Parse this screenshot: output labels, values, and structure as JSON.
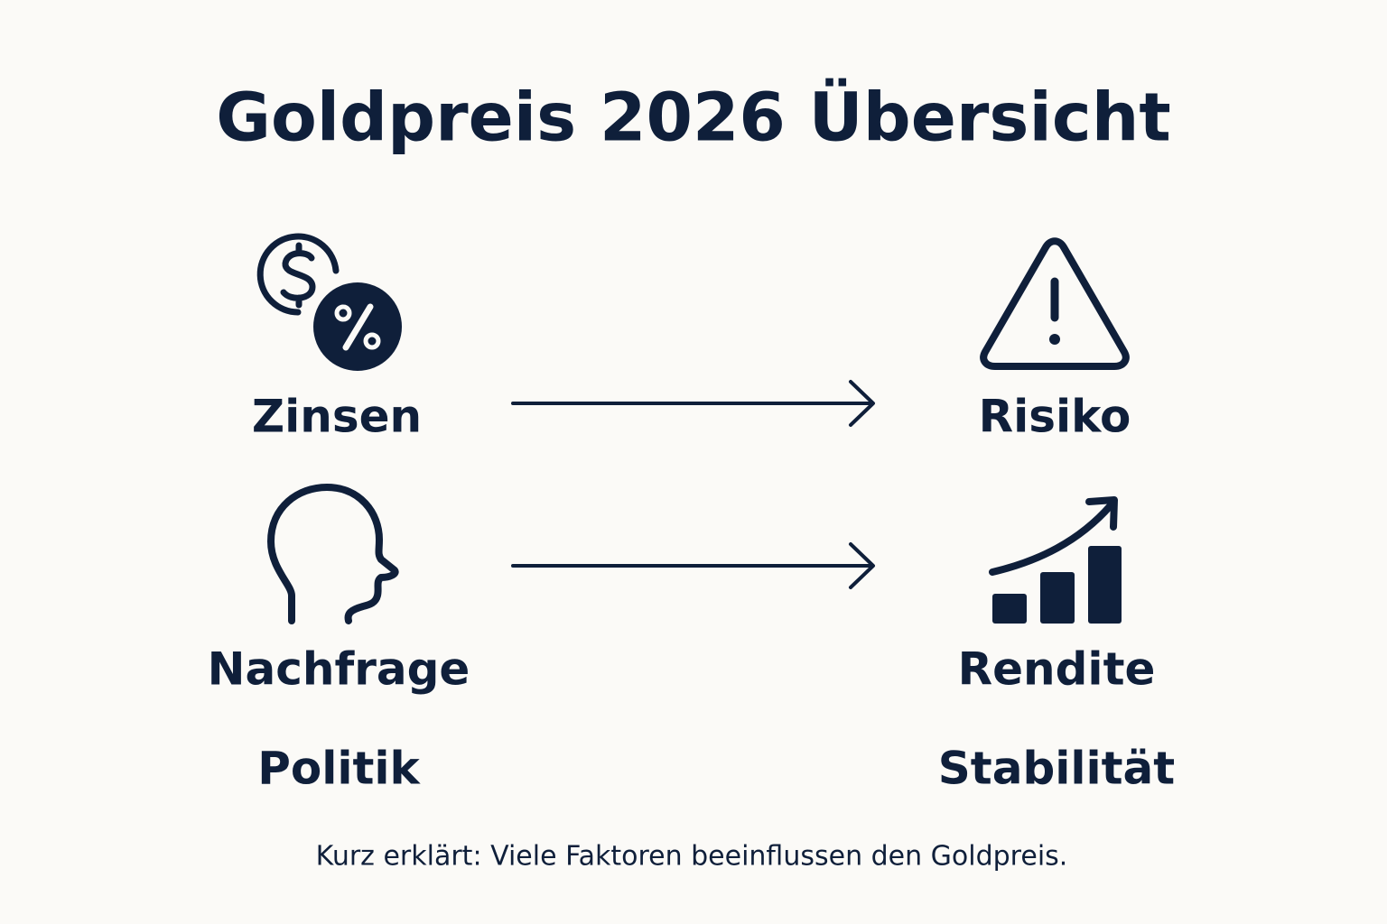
{
  "header": {
    "title": "Goldpreis 2026 Übersicht"
  },
  "left": {
    "items": [
      {
        "label": "Zinsen"
      },
      {
        "label": "Nachfrage"
      },
      {
        "label": "Politik"
      }
    ]
  },
  "right": {
    "items": [
      {
        "label": "Risiko"
      },
      {
        "label": "Rendite"
      },
      {
        "label": "Stabilität"
      }
    ]
  },
  "footer": {
    "text": "Kurz erklärt: Viele Faktoren beeinflussen den Goldpreis."
  }
}
